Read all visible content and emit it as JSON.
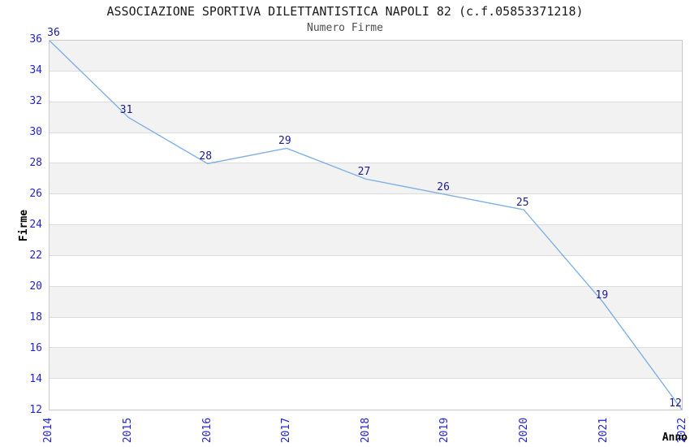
{
  "chart_data": {
    "type": "line",
    "title": "ASSOCIAZIONE SPORTIVA DILETTANTISTICA NAPOLI 82 (c.f.05853371218)",
    "subtitle": "Numero Firme",
    "xlabel": "Anno",
    "ylabel": "Firme",
    "categories": [
      "2014",
      "2015",
      "2016",
      "2017",
      "2018",
      "2019",
      "2020",
      "2021",
      "2022"
    ],
    "values": [
      36,
      31,
      28,
      29,
      27,
      26,
      25,
      19,
      12
    ],
    "ylim": [
      12,
      36
    ],
    "yticks": [
      12,
      14,
      16,
      18,
      20,
      22,
      24,
      26,
      28,
      30,
      32,
      34,
      36
    ],
    "grid": "horizontal-bands-alternating",
    "legend": "none",
    "data_labels_visible": true,
    "colors": {
      "line": "#7fb0e3",
      "tick_label": "#2424cf",
      "data_label": "#1c1c8f",
      "band": "#f2f2f2",
      "gridline": "#dcdcdc",
      "spine": "#c9c9c9",
      "title": "#1a1a1a",
      "subtitle": "#4d4d4d"
    }
  }
}
